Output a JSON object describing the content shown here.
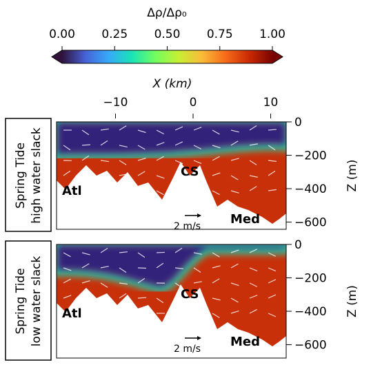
{
  "colorbar": {
    "label": "Δρ/Δρ₀",
    "lim": [
      0,
      1
    ],
    "ticks": [
      {
        "value": 0,
        "label": "0.00"
      },
      {
        "value": 0.25,
        "label": "0.25"
      },
      {
        "value": 0.5,
        "label": "0.50"
      },
      {
        "value": 0.75,
        "label": "0.75"
      },
      {
        "value": 1,
        "label": "1.00"
      }
    ],
    "colors": [
      "#30123b",
      "#4662d7",
      "#36aaf9",
      "#1ae4b6",
      "#72fe5e",
      "#c8ef34",
      "#faba39",
      "#f66b19",
      "#ca2a04",
      "#7a0403"
    ]
  },
  "xaxis": {
    "label": "X (km)",
    "lim": [
      -17.6,
      12
    ],
    "ticks": [
      {
        "value": -10,
        "label": "−10"
      },
      0,
      10
    ]
  },
  "zaxis": {
    "label": "Z (m)",
    "lim": [
      -643,
      0
    ],
    "ticks": [
      0,
      {
        "value": -200,
        "label": "−200"
      },
      {
        "value": -400,
        "label": "−400"
      },
      {
        "value": -600,
        "label": "−600"
      }
    ]
  },
  "panels": [
    {
      "lines": [
        "Spring Tide",
        "high water slack"
      ],
      "annotations": [
        "Atl",
        "CS",
        "Med"
      ],
      "scale": "2 m/s"
    },
    {
      "lines": [
        "Spring Tide",
        "low water slack"
      ],
      "annotations": [
        "Atl",
        "CS",
        "Med"
      ],
      "scale": "2 m/s"
    }
  ]
}
